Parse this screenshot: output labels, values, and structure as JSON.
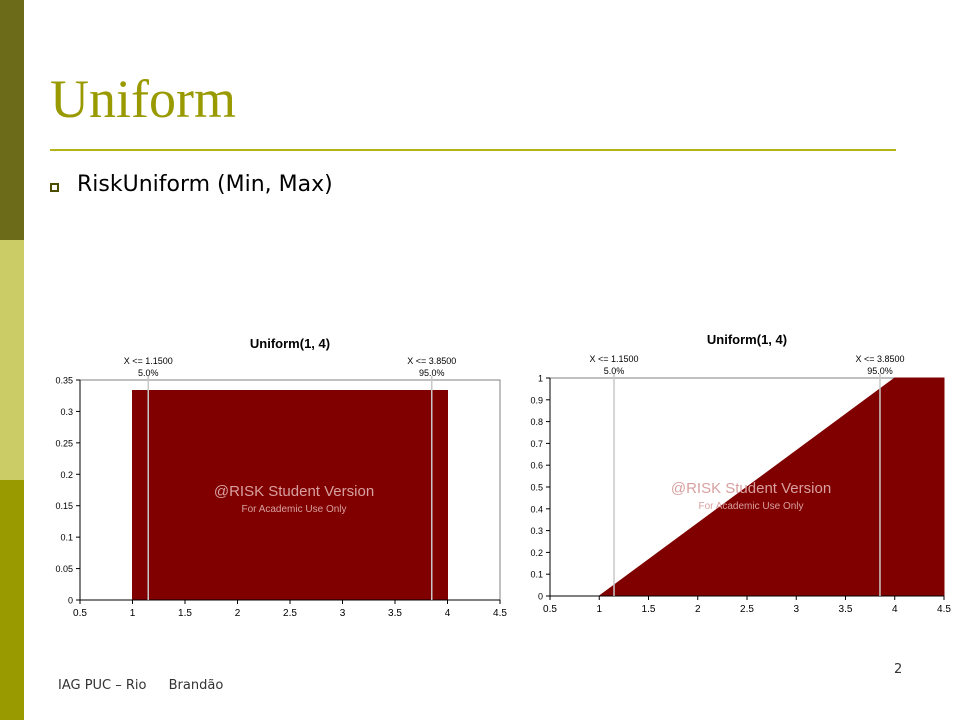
{
  "slide": {
    "title": "Uniform",
    "bullet": "RiskUniform (Min, Max)",
    "footer_org": "IAG PUC – Rio",
    "footer_author": "Brandão",
    "page_number": "2"
  },
  "colors": {
    "fill": "#800000",
    "title": "#999900",
    "marker_line": "#c8c8c8"
  },
  "chart_data": [
    {
      "type": "area",
      "title": "Uniform(1, 4)",
      "xlim": [
        0.5,
        4.5
      ],
      "ylim": [
        0,
        0.35
      ],
      "x_ticks": [
        "0.5",
        "1",
        "1.5",
        "2",
        "2.5",
        "3",
        "3.5",
        "4",
        "4.5"
      ],
      "y_ticks": [
        "0",
        "0.05",
        "0.1",
        "0.15",
        "0.2",
        "0.25",
        "0.3",
        "0.35"
      ],
      "x": [
        0.5,
        1,
        1,
        4,
        4,
        4.5
      ],
      "y": [
        0,
        0,
        0.3333,
        0.3333,
        0,
        0
      ],
      "markers": [
        {
          "x": 1.15,
          "label": "X <= 1.1500",
          "pct": "5.0%"
        },
        {
          "x": 3.85,
          "label": "X <= 3.8500",
          "pct": "95.0%"
        }
      ],
      "watermark": [
        "@RISK Student Version",
        "For Academic Use Only"
      ],
      "grid": false
    },
    {
      "type": "area",
      "title": "Uniform(1, 4)",
      "xlim": [
        0.5,
        4.5
      ],
      "ylim": [
        0,
        1
      ],
      "x_ticks": [
        "0.5",
        "1",
        "1.5",
        "2",
        "2.5",
        "3",
        "3.5",
        "4",
        "4.5"
      ],
      "y_ticks": [
        "0",
        "0.1",
        "0.2",
        "0.3",
        "0.4",
        "0.5",
        "0.6",
        "0.7",
        "0.8",
        "0.9",
        "1"
      ],
      "x": [
        0.5,
        1,
        4,
        4.5
      ],
      "y": [
        0,
        0,
        1,
        1
      ],
      "markers": [
        {
          "x": 1.15,
          "label": "X <= 1.1500",
          "pct": "5.0%"
        },
        {
          "x": 3.85,
          "label": "X <= 3.8500",
          "pct": "95.0%"
        }
      ],
      "watermark": [
        "@RISK Student Version",
        "For Academic Use Only"
      ],
      "grid": false
    }
  ]
}
